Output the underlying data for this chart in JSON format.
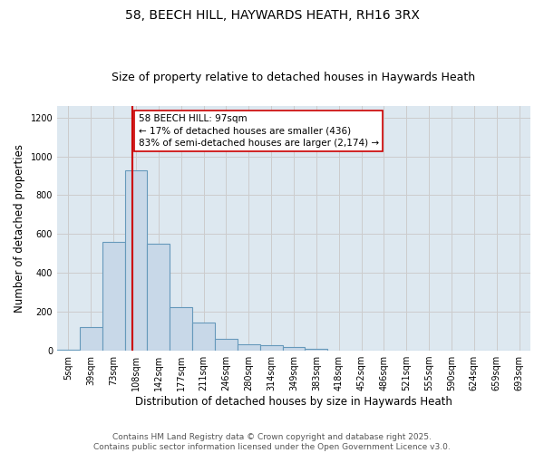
{
  "title": "58, BEECH HILL, HAYWARDS HEATH, RH16 3RX",
  "subtitle": "Size of property relative to detached houses in Haywards Heath",
  "xlabel": "Distribution of detached houses by size in Haywards Heath",
  "ylabel": "Number of detached properties",
  "categories": [
    "5sqm",
    "39sqm",
    "73sqm",
    "108sqm",
    "142sqm",
    "177sqm",
    "211sqm",
    "246sqm",
    "280sqm",
    "314sqm",
    "349sqm",
    "383sqm",
    "418sqm",
    "452sqm",
    "486sqm",
    "521sqm",
    "555sqm",
    "590sqm",
    "624sqm",
    "659sqm",
    "693sqm"
  ],
  "values": [
    5,
    120,
    560,
    930,
    550,
    225,
    145,
    60,
    35,
    30,
    18,
    8,
    0,
    0,
    0,
    0,
    0,
    0,
    0,
    0,
    0
  ],
  "bar_color": "#c8d8e8",
  "bar_edge_color": "#6699bb",
  "vline_x": 2.85,
  "vline_color": "#cc0000",
  "annotation_line1": "58 BEECH HILL: 97sqm",
  "annotation_line2": "← 17% of detached houses are smaller (436)",
  "annotation_line3": "83% of semi-detached houses are larger (2,174) →",
  "annotation_box_color": "#ffffff",
  "annotation_box_edge": "#cc0000",
  "ylim": [
    0,
    1260
  ],
  "yticks": [
    0,
    200,
    400,
    600,
    800,
    1000,
    1200
  ],
  "grid_color": "#cccccc",
  "background_color": "#dde8f0",
  "footer_text": "Contains HM Land Registry data © Crown copyright and database right 2025.\nContains public sector information licensed under the Open Government Licence v3.0.",
  "title_fontsize": 10,
  "subtitle_fontsize": 9,
  "axis_label_fontsize": 8.5,
  "tick_fontsize": 7,
  "annotation_fontsize": 7.5,
  "footer_fontsize": 6.5
}
